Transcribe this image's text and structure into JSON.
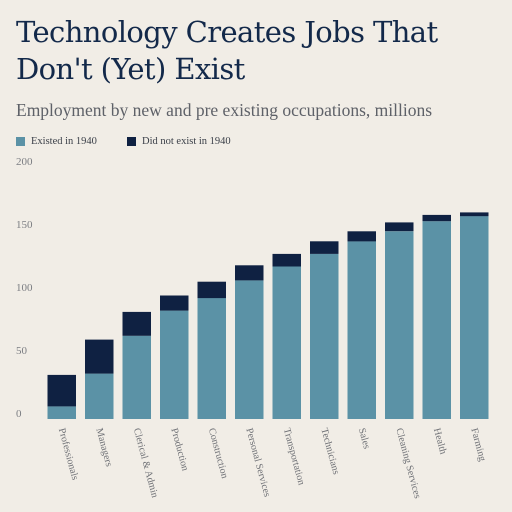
{
  "chart_data": {
    "type": "bar",
    "stacked": true,
    "title": "Technology Creates Jobs That Don't (Yet) Exist",
    "subtitle": "Employment by new and pre existing occupations, millions",
    "legend_position": "top-left",
    "grid": false,
    "ylim": [
      0,
      200
    ],
    "yticks": [
      0,
      50,
      100,
      150,
      200
    ],
    "categories": [
      "Professionals",
      "Managers",
      "Clerical & Admin",
      "Production",
      "Construction",
      "Personal Services",
      "Transportation",
      "Technicians",
      "Sales",
      "Cleaning Services",
      "Health",
      "Farming"
    ],
    "series": [
      {
        "name": "Existed in 1940",
        "color": "#5b92a6",
        "values": [
          10,
          36,
          66,
          86,
          96,
          110,
          121,
          131,
          141,
          149,
          157,
          161
        ]
      },
      {
        "name": "Did not exist in 1940",
        "color": "#0f2142",
        "values": [
          25,
          27,
          19,
          12,
          13,
          12,
          10,
          10,
          8,
          7,
          5,
          3
        ]
      }
    ]
  }
}
